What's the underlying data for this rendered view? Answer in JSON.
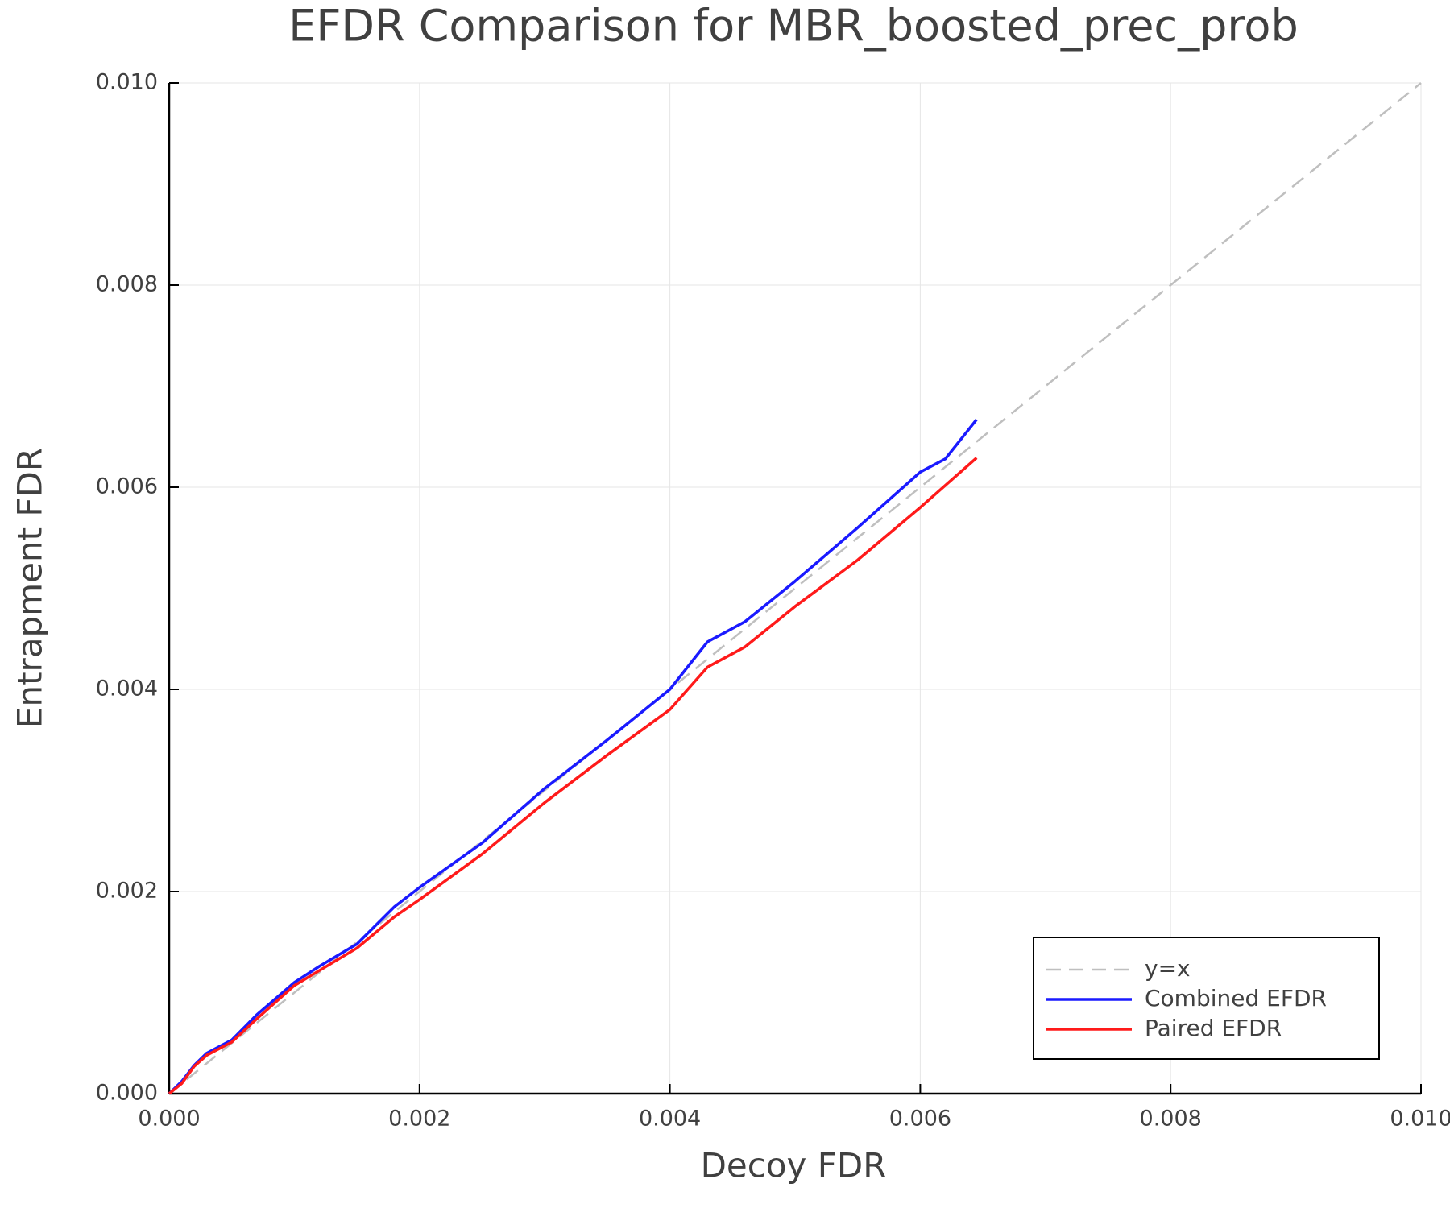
{
  "chart_data": {
    "type": "line",
    "title": "EFDR Comparison for MBR_boosted_prec_prob",
    "xlabel": "Decoy FDR",
    "ylabel": "Entrapment FDR",
    "xlim": [
      0,
      0.01
    ],
    "ylim": [
      0,
      0.01
    ],
    "xticks": [
      {
        "value": 0,
        "label": "0.000"
      },
      {
        "value": 0.002,
        "label": "0.002"
      },
      {
        "value": 0.004,
        "label": "0.004"
      },
      {
        "value": 0.006,
        "label": "0.006"
      },
      {
        "value": 0.008,
        "label": "0.008"
      },
      {
        "value": 0.01,
        "label": "0.010"
      }
    ],
    "yticks": [
      {
        "value": 0,
        "label": "0.000"
      },
      {
        "value": 0.002,
        "label": "0.002"
      },
      {
        "value": 0.004,
        "label": "0.004"
      },
      {
        "value": 0.006,
        "label": "0.006"
      },
      {
        "value": 0.008,
        "label": "0.008"
      },
      {
        "value": 0.01,
        "label": "0.010"
      }
    ],
    "grid": true,
    "legend": "bottom-right",
    "series": [
      {
        "name": "y=x",
        "color": "#bfbfbf",
        "style": "dashed",
        "x": [
          0,
          0.01
        ],
        "values": [
          0,
          0.01
        ]
      },
      {
        "name": "Combined EFDR",
        "color": "#1a1aff",
        "style": "solid",
        "x": [
          0,
          0.0001,
          0.0002,
          0.0003,
          0.0005,
          0.0007,
          0.001,
          0.0012,
          0.0015,
          0.0018,
          0.002,
          0.0025,
          0.003,
          0.0035,
          0.004,
          0.0043,
          0.0046,
          0.005,
          0.0055,
          0.006,
          0.0062,
          0.00645
        ],
        "values": [
          0,
          0.00012,
          0.00028,
          0.0004,
          0.00053,
          0.00078,
          0.0011,
          0.00126,
          0.00148,
          0.00185,
          0.00204,
          0.00248,
          0.00302,
          0.0035,
          0.004,
          0.00447,
          0.00467,
          0.00507,
          0.0056,
          0.00615,
          0.00628,
          0.00667
        ]
      },
      {
        "name": "Paired EFDR",
        "color": "#ff1a1a",
        "style": "solid",
        "x": [
          0,
          0.0001,
          0.0002,
          0.0003,
          0.0005,
          0.0007,
          0.001,
          0.0015,
          0.0018,
          0.002,
          0.0025,
          0.003,
          0.0035,
          0.004,
          0.0043,
          0.0046,
          0.005,
          0.0055,
          0.006,
          0.00645
        ],
        "values": [
          0,
          0.0001,
          0.00027,
          0.00038,
          0.00051,
          0.00074,
          0.00107,
          0.00144,
          0.00175,
          0.00192,
          0.00237,
          0.00288,
          0.00335,
          0.0038,
          0.00422,
          0.00442,
          0.00482,
          0.00528,
          0.0058,
          0.00629
        ]
      }
    ]
  }
}
